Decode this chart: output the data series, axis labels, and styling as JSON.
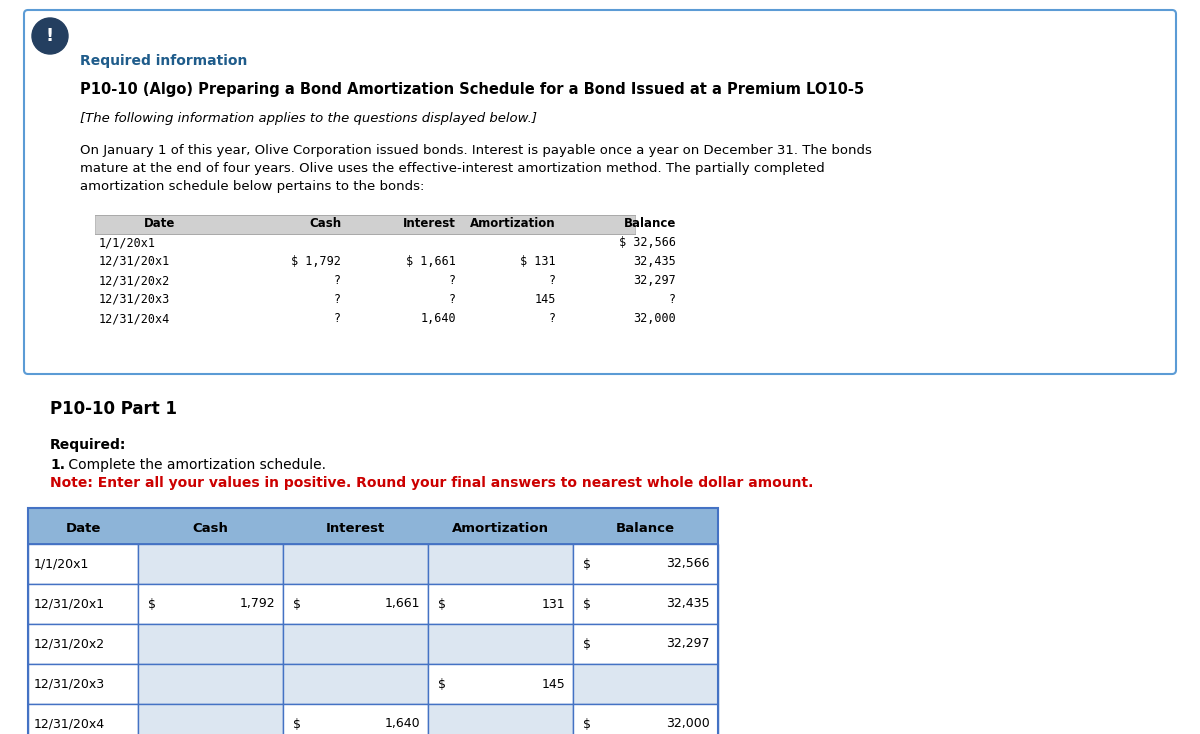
{
  "page_bg": "#ffffff",
  "card_bg": "#ffffff",
  "card_border": "#5b9bd5",
  "required_info_color": "#1f5c8b",
  "title_bold": "P10-10 (Algo) Preparing a Bond Amortization Schedule for a Bond Issued at a Premium LO10-5",
  "subtitle_italic": "[The following information applies to the questions displayed below.]",
  "body_lines": [
    "On January 1 of this year, Olive Corporation issued bonds. Interest is payable once a year on December 31. The bonds",
    "mature at the end of four years. Olive uses the effective-interest amortization method. The partially completed",
    "amortization schedule below pertains to the bonds:"
  ],
  "top_table_header": [
    "Date",
    "Cash",
    "Interest",
    "Amortization",
    "Balance"
  ],
  "top_table_rows": [
    [
      "1/1/20x1",
      "",
      "",
      "",
      "$ 32,566"
    ],
    [
      "12/31/20x1",
      "$ 1,792",
      "$ 1,661",
      "$ 131",
      "32,435"
    ],
    [
      "12/31/20x2",
      "?",
      "?",
      "?",
      "32,297"
    ],
    [
      "12/31/20x3",
      "?",
      "?",
      "145",
      "?"
    ],
    [
      "12/31/20x4",
      "?",
      "1,640",
      "?",
      "32,000"
    ]
  ],
  "part_label": "P10-10 Part 1",
  "required_label": "Required:",
  "instruction1_bold": "1.",
  "instruction1_normal": " Complete the amortization schedule.",
  "instruction2_red": "Note: Enter all your values in positive. Round your final answers to nearest whole dollar amount.",
  "bottom_rows": [
    {
      "date": "1/1/20x1",
      "cash_dollar": "",
      "cash_val": "",
      "int_dollar": "",
      "int_val": "",
      "amort_dollar": "",
      "amort_val": "",
      "bal_dollar": "$",
      "bal_val": "32,566"
    },
    {
      "date": "12/31/20x1",
      "cash_dollar": "$",
      "cash_val": "1,792",
      "int_dollar": "$",
      "int_val": "1,661",
      "amort_dollar": "$",
      "amort_val": "131",
      "bal_dollar": "$",
      "bal_val": "32,435"
    },
    {
      "date": "12/31/20x2",
      "cash_dollar": "",
      "cash_val": "",
      "int_dollar": "",
      "int_val": "",
      "amort_dollar": "",
      "amort_val": "",
      "bal_dollar": "$",
      "bal_val": "32,297"
    },
    {
      "date": "12/31/20x3",
      "cash_dollar": "",
      "cash_val": "",
      "int_dollar": "",
      "int_val": "",
      "amort_dollar": "$",
      "amort_val": "145",
      "bal_dollar": "",
      "bal_val": ""
    },
    {
      "date": "12/31/20x4",
      "cash_dollar": "",
      "cash_val": "",
      "int_dollar": "$",
      "int_val": "1,640",
      "amort_dollar": "",
      "amort_val": "",
      "bal_dollar": "$",
      "bal_val": "32,000"
    }
  ],
  "input_cells": [
    [
      false,
      true,
      true,
      true,
      false
    ],
    [
      false,
      false,
      false,
      false,
      false
    ],
    [
      false,
      true,
      true,
      true,
      false
    ],
    [
      false,
      true,
      true,
      false,
      true
    ],
    [
      false,
      true,
      false,
      true,
      false
    ]
  ],
  "header_bg": "#8db4d8",
  "header_fg": "#000000",
  "row_bg": "#ffffff",
  "row_border": "#4472c4",
  "input_cell_bg": "#dce6f1",
  "icon_color": "#243f60",
  "icon_border": "#5b9bd5"
}
